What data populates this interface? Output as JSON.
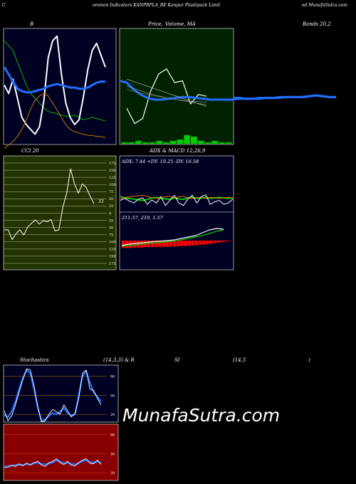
{
  "header": {
    "left": "C",
    "center": "ommon  Indicators KANPRPLA_BE Kanpur Plastipack Limit",
    "right": "ed MunafaSutra.com"
  },
  "watermark": "MunafaSutra.com",
  "colors": {
    "navy": "#000022",
    "green_panel": "#002200",
    "olive_panel": "#223300",
    "red_panel": "#880000",
    "line_white": "#ffffff",
    "line_blue": "#1f6fff",
    "line_green": "#00bb00",
    "line_orange": "#cc7700",
    "bar_green": "#00cc00",
    "macd_red": "#ff0000"
  },
  "panels": {
    "bollinger": {
      "label": "B",
      "chart_data": {
        "type": "line",
        "series": [
          {
            "role": "upper",
            "color": "#00bb00",
            "values": [
              92,
              88,
              84,
              74,
              65,
              55,
              48,
              44,
              40,
              36,
              33,
              32,
              31,
              30,
              29,
              29,
              30,
              28,
              26,
              27,
              28,
              27,
              26,
              25
            ]
          },
          {
            "role": "price",
            "color": "#ffffff",
            "values": [
              55,
              48,
              60,
              44,
              28,
              22,
              18,
              14,
              20,
              42,
              78,
              92,
              96,
              64,
              40,
              28,
              22,
              26,
              45,
              68,
              84,
              90,
              80,
              70
            ]
          },
          {
            "role": "middle",
            "color": "#1f6fff",
            "values": [
              70,
              64,
              58,
              52,
              50,
              49,
              49,
              50,
              51,
              52,
              54,
              55,
              56,
              55,
              54,
              53,
              53,
              52,
              52,
              53,
              55,
              57,
              58,
              58
            ]
          },
          {
            "role": "lower",
            "color": "#cc7700",
            "values": [
              2,
              5,
              8,
              12,
              18,
              26,
              35,
              42,
              46,
              48,
              46,
              40,
              34,
              28,
              22,
              18,
              16,
              15,
              14,
              13,
              13,
              12,
              12,
              11
            ]
          }
        ]
      }
    },
    "price_ma": {
      "label_a": "Price,",
      "label_b": "Volume, MA",
      "chart_data": {
        "type": "line",
        "series": [
          {
            "role": "price",
            "color": "#ffffff",
            "values": [
              40,
              22,
              28,
              60,
              80,
              86,
              70,
              72,
              45,
              56,
              54
            ]
          },
          {
            "role": "ma_blue",
            "color": "#1f6fff",
            "values": [
              72,
              70,
              62,
              56,
              52,
              50,
              50,
              51,
              52,
              53,
              53,
              52,
              51,
              50,
              50,
              50,
              50,
              51,
              51,
              51,
              52,
              52,
              52,
              53,
              53,
              53,
              53,
              54,
              55,
              54,
              53,
              53
            ]
          },
          {
            "role": "ma_thin_1",
            "color": "#cccccc",
            "values": [
              74,
              70,
              66,
              62,
              58,
              54,
              50,
              46,
              42
            ]
          },
          {
            "role": "ma_thin_2",
            "color": "#aaaaaa",
            "values": [
              66,
              62,
              58,
              55,
              52,
              50,
              48,
              46,
              44
            ]
          },
          {
            "role": "ma_thin_3",
            "color": "#888888",
            "values": [
              62,
              59,
              56,
              54,
              52,
              50,
              49,
              48,
              47
            ]
          }
        ],
        "volume": [
          1,
          1,
          2,
          1,
          1,
          2,
          1,
          2,
          3,
          6,
          5,
          2,
          1,
          2,
          1,
          1
        ]
      }
    },
    "bands_label": "Bands 20,2",
    "cci": {
      "label": "CCI 20",
      "last_value": "33",
      "chart_data": {
        "type": "line",
        "yticks": [
          175,
          150,
          125,
          100,
          75,
          50,
          25,
          0,
          -25,
          -50,
          -75,
          -100,
          -125,
          -150,
          -175
        ],
        "ytick_labels": [
          "175",
          "150",
          "125",
          "100",
          "75",
          "50",
          "25",
          "0",
          "25",
          "50",
          "75",
          "100",
          "125",
          "150",
          "175"
        ],
        "ylim": [
          -175,
          175
        ],
        "series": [
          {
            "name": "",
            "color": "#ffffff",
            "values": [
              -58,
              -58,
              -92,
              -72,
              -58,
              -76,
              -48,
              -35,
              -24,
              -38,
              -26,
              -30,
              -22,
              -62,
              -58,
              20,
              70,
              155,
              102,
              70,
              102,
              90,
              60,
              33
            ]
          }
        ]
      }
    },
    "adx_macd": {
      "label": "ADX  & MACD 12,26,9",
      "adx_text": "ADX: 7.44  +DY: 19.25 -DY: 16.58",
      "macd_text": "211.57,  210,  1.57",
      "chart_data": {
        "type": "line",
        "adx_series": [
          {
            "role": "plus_di",
            "color": "#00cc00",
            "values": [
              55,
              50,
              48,
              45,
              42,
              40,
              44,
              50,
              52,
              48,
              46,
              44,
              50,
              46,
              44,
              50,
              52,
              48,
              50,
              52,
              48,
              50,
              52,
              50,
              48,
              50
            ]
          },
          {
            "role": "minus_di",
            "color": "#ff6600",
            "values": [
              45,
              52,
              54,
              56,
              58,
              60,
              56,
              50,
              48,
              52,
              54,
              56,
              50,
              54,
              56,
              50,
              48,
              52,
              50,
              48,
              52,
              50,
              48,
              50,
              52,
              50
            ]
          },
          {
            "role": "adx",
            "color": "#ffffff",
            "values": [
              40,
              48,
              38,
              30,
              45,
              50,
              25,
              42,
              30,
              55,
              20,
              40,
              60,
              30,
              20,
              45,
              60,
              30,
              55,
              62,
              25,
              35,
              40,
              25,
              30,
              45
            ]
          }
        ],
        "macd_series": [
          {
            "role": "macd",
            "color": "#ffffff",
            "values": [
              -10,
              -8,
              -6,
              -5,
              -4,
              -3,
              -2,
              -1,
              0,
              1,
              2,
              2,
              3,
              4,
              5,
              6,
              8,
              10,
              12,
              14,
              16,
              18,
              22,
              26,
              30,
              34,
              36,
              38,
              37,
              36
            ]
          },
          {
            "role": "signal",
            "color": "#00cc00",
            "values": [
              -12,
              -11,
              -10,
              -9,
              -8,
              -7,
              -6,
              -5,
              -4,
              -3,
              -2,
              -1,
              0,
              1,
              2,
              3,
              4,
              6,
              8,
              10,
              12,
              14,
              16,
              18,
              21,
              24,
              27,
              30,
              32,
              34
            ]
          },
          {
            "role": "histogram",
            "color": "#ff0000",
            "values": [
              -30,
              -30,
              -30,
              -28,
              -28,
              -28,
              -26,
              -26,
              -26,
              -26,
              -25,
              -25,
              -24,
              -24,
              -24,
              -23,
              -22,
              -22,
              -20,
              -20,
              -18,
              -17,
              -16,
              -14,
              -12,
              -10,
              -8,
              -6,
              -4,
              -2
            ]
          }
        ]
      }
    },
    "stoch_header": {
      "a": "Stochastics",
      "b": "(14,3,3) & R",
      "c": "SI",
      "d": "(14,5",
      "e": ")"
    },
    "stochastics": {
      "chart_data": {
        "type": "line",
        "yticks": [
          80,
          50,
          20
        ],
        "ytick_labels": [
          "80",
          "50",
          "20"
        ],
        "ylim": [
          0,
          100
        ],
        "series": [
          {
            "role": "k",
            "color": "#1f6fff",
            "values": [
              20,
              15,
              25,
              40,
              60,
              78,
              90,
              85,
              60,
              30,
              10,
              12,
              18,
              22,
              20,
              25,
              30,
              22,
              18,
              20,
              50,
              80,
              88,
              70,
              55,
              48,
              40
            ]
          },
          {
            "role": "d",
            "color": "#ffffff",
            "values": [
              26,
              10,
              18,
              35,
              55,
              75,
              92,
              90,
              65,
              32,
              8,
              10,
              20,
              28,
              24,
              20,
              35,
              26,
              16,
              22,
              45,
              85,
              90,
              60,
              58,
              45,
              35
            ]
          }
        ]
      }
    },
    "rsi": {
      "chart_data": {
        "type": "line",
        "yticks": [
          80,
          50,
          20
        ],
        "ytick_labels": [
          "80",
          "50",
          "20"
        ],
        "ylim": [
          0,
          100
        ],
        "series": [
          {
            "role": "rsi",
            "color": "#1f6fff",
            "values": [
              30,
              30,
              31,
              32,
              33,
              32,
              34,
              33,
              35,
              36,
              34,
              33,
              35,
              36,
              40,
              38,
              35,
              36,
              34,
              33,
              35,
              38,
              40,
              37,
              36,
              38,
              35
            ]
          },
          {
            "role": "rsi_signal",
            "color": "#ffffff",
            "values": [
              28,
              29,
              32,
              30,
              34,
              31,
              35,
              32,
              36,
              38,
              32,
              30,
              36,
              38,
              42,
              36,
              33,
              38,
              32,
              31,
              36,
              40,
              42,
              35,
              34,
              40,
              33
            ]
          }
        ]
      }
    }
  }
}
